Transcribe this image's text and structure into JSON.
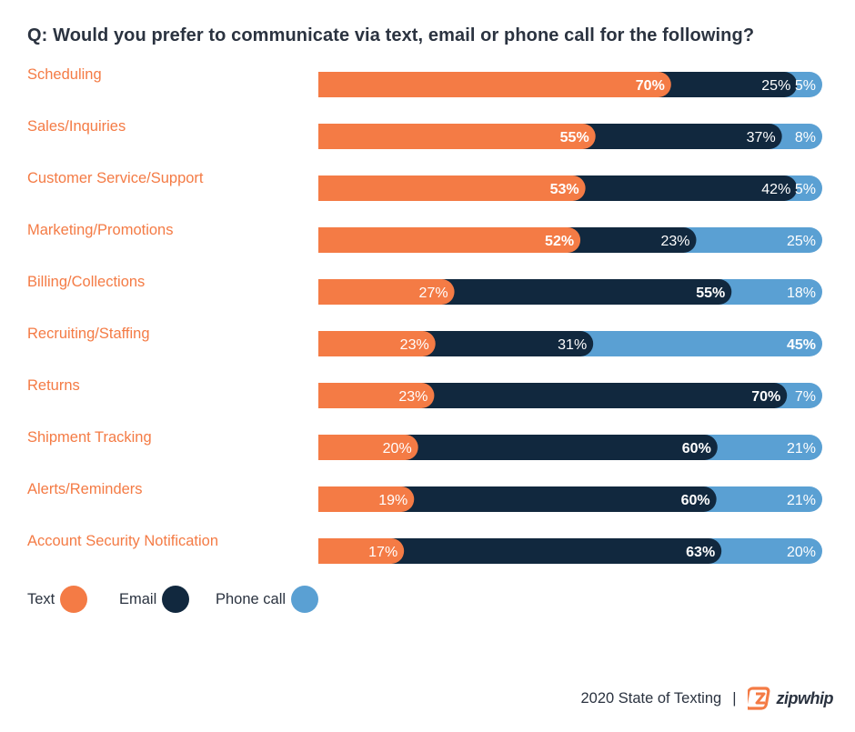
{
  "title": "Q: Would you prefer to communicate via text, email or phone call for the following?",
  "chart_data": {
    "type": "bar",
    "stacked": true,
    "orientation": "horizontal",
    "categories": [
      "Scheduling",
      "Sales/Inquiries",
      "Customer Service/Support",
      "Marketing/Promotions",
      "Billing/Collections",
      "Recruiting/Staffing",
      "Returns",
      "Shipment Tracking",
      "Alerts/Reminders",
      "Account Security Notification"
    ],
    "series": [
      {
        "name": "Text",
        "color": "#f47b45",
        "values": [
          70,
          55,
          53,
          52,
          27,
          23,
          23,
          20,
          19,
          17
        ]
      },
      {
        "name": "Email",
        "color": "#11283e",
        "values": [
          25,
          37,
          42,
          23,
          55,
          31,
          70,
          60,
          60,
          63
        ]
      },
      {
        "name": "Phone call",
        "color": "#5aa0d3",
        "values": [
          5,
          8,
          5,
          25,
          18,
          45,
          7,
          21,
          21,
          20
        ]
      }
    ],
    "label_suffix": "%",
    "legend_position": "bottom-left"
  },
  "legend": {
    "items": [
      {
        "label": "Text",
        "color": "#f47b45"
      },
      {
        "label": "Email",
        "color": "#11283e"
      },
      {
        "label": "Phone call",
        "color": "#5aa0d3"
      }
    ]
  },
  "footer": {
    "source": "2020 State of Texting",
    "separator": "|",
    "brand": "zipwhip",
    "brand_logo_icon": "zipwhip-logo-icon",
    "brand_color": "#f47b45"
  }
}
